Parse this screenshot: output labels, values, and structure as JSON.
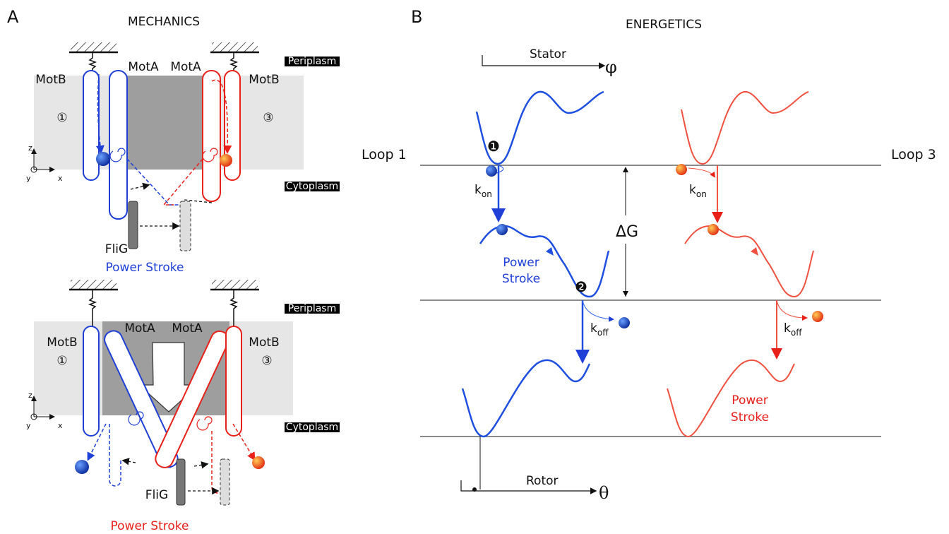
{
  "panel_a": {
    "label": "A",
    "title": "MECHANICS",
    "top": {
      "periplasm": "Periplasm",
      "cytoplasm": "Cytoplasm",
      "motb_left": "MotB",
      "mota_left": "MotA",
      "mota_right": "MotA",
      "motb_right": "MotB",
      "site_left": "①",
      "site_right": "③",
      "axis_z": "z",
      "axis_y": "y",
      "axis_x": "x",
      "flig": "FliG",
      "caption": "Power Stroke"
    },
    "bottom": {
      "periplasm": "Periplasm",
      "cytoplasm": "Cytoplasm",
      "motb_left": "MotB",
      "mota_left": "MotA",
      "mota_right": "MotA",
      "motb_right": "MotB",
      "site_left": "①",
      "site_right": "③",
      "axis_z": "z",
      "axis_y": "y",
      "axis_x": "x",
      "flig": "FliG",
      "caption": "Power Stroke"
    }
  },
  "panel_b": {
    "label": "B",
    "title": "ENERGETICS",
    "stator": "Stator",
    "phi": "φ",
    "loop_left": "Loop 1",
    "loop_right": "Loop 3",
    "step_1": "❶",
    "step_2": "❷",
    "delta_g": "ΔG",
    "k_on_blue": {
      "k": "k",
      "sub": "on"
    },
    "k_on_red": {
      "k": "k",
      "sub": "on"
    },
    "k_off_blue": {
      "k": "k",
      "sub": "off"
    },
    "k_off_red": {
      "k": "k",
      "sub": "off"
    },
    "power_stroke_blue": [
      "Power",
      "Stroke"
    ],
    "power_stroke_red": [
      "Power",
      "Stroke"
    ],
    "rotor": "Rotor",
    "theta": "θ"
  }
}
